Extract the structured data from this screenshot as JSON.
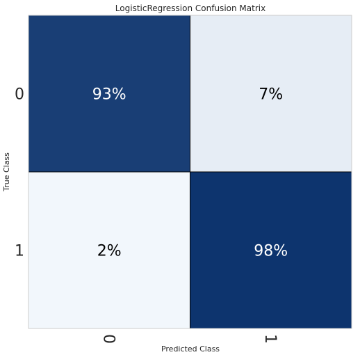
{
  "chart_data": {
    "type": "heatmap",
    "title": "LogisticRegression Confusion Matrix",
    "xlabel": "Predicted Class",
    "ylabel": "True Class",
    "x_categories": [
      "0",
      "1"
    ],
    "y_categories": [
      "0",
      "1"
    ],
    "values": [
      [
        93,
        7
      ],
      [
        2,
        98
      ]
    ],
    "labels": [
      [
        "93%",
        "7%"
      ],
      [
        "2%",
        "98%"
      ]
    ],
    "colormap": "blues",
    "color_low": "#f7fbff",
    "color_high": "#08306b",
    "text_on_dark": "#ffffff",
    "text_on_light": "#000000"
  }
}
